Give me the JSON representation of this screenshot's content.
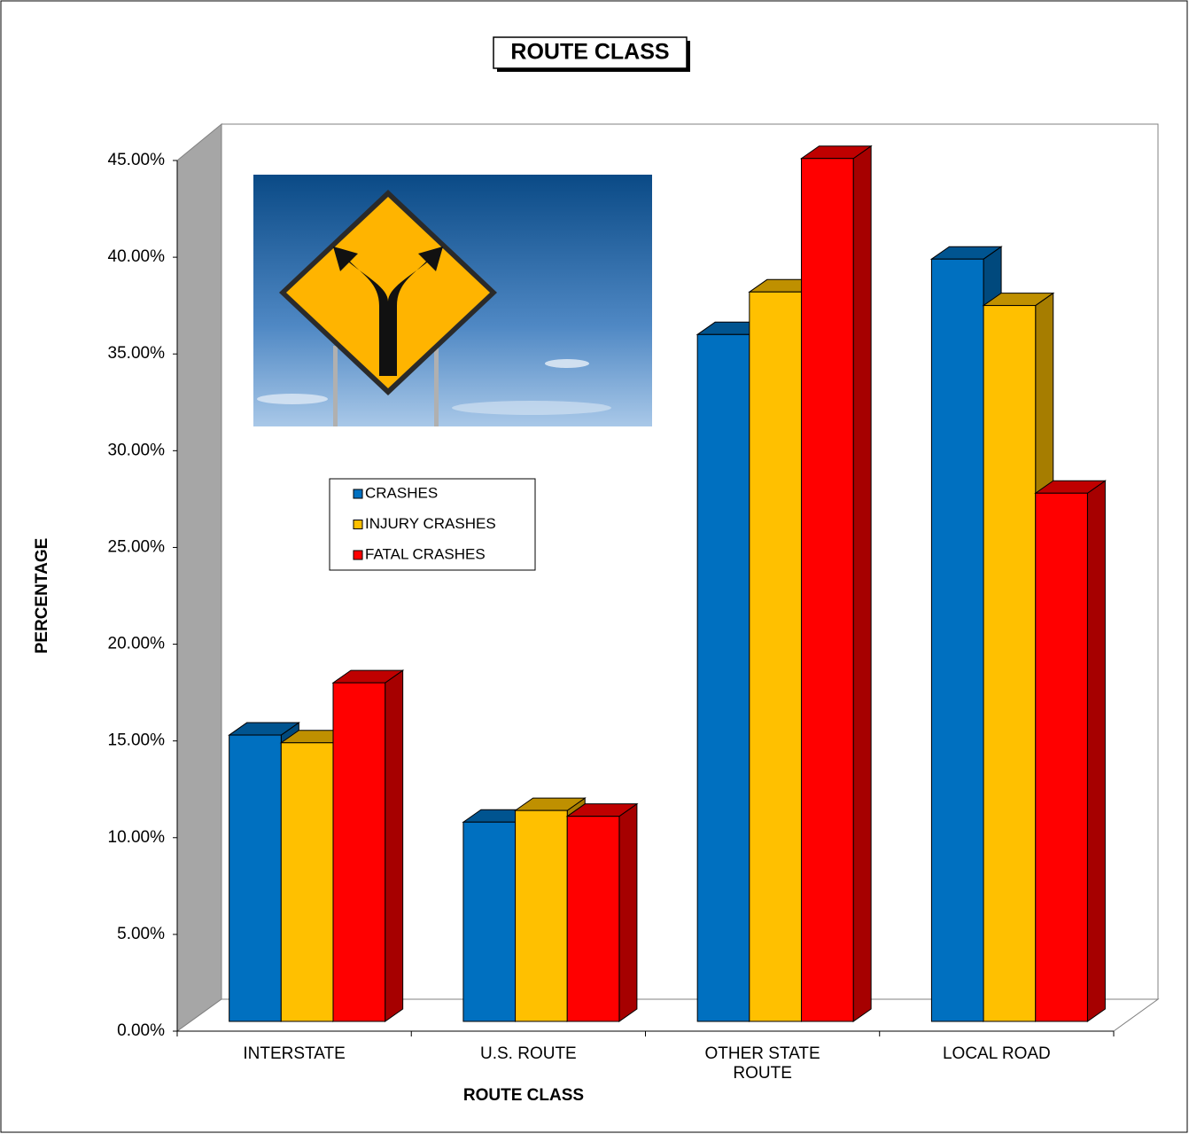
{
  "chart_data": {
    "type": "bar",
    "title": "ROUTE CLASS",
    "xlabel": "ROUTE CLASS",
    "ylabel": "PERCENTAGE",
    "categories": [
      "INTERSTATE",
      "U.S. ROUTE",
      "OTHER STATE ROUTE",
      "LOCAL ROAD"
    ],
    "series": [
      {
        "name": "CRASHES",
        "color": "#0070c0",
        "values": [
          14.8,
          10.3,
          35.5,
          39.4
        ]
      },
      {
        "name": "INJURY CRASHES",
        "color": "#ffc000",
        "values": [
          14.4,
          10.9,
          37.7,
          37.0
        ]
      },
      {
        "name": "FATAL CRASHES",
        "color": "#ff0000",
        "values": [
          17.5,
          10.6,
          44.6,
          27.3
        ]
      }
    ],
    "ylim": [
      0,
      45
    ],
    "yticks": [
      {
        "value": 0,
        "label": "0.00%"
      },
      {
        "value": 5,
        "label": "5.00%"
      },
      {
        "value": 10,
        "label": "10.00%"
      },
      {
        "value": 15,
        "label": "15.00%"
      },
      {
        "value": 20,
        "label": "20.00%"
      },
      {
        "value": 25,
        "label": "25.00%"
      },
      {
        "value": 30,
        "label": "30.00%"
      },
      {
        "value": 35,
        "label": "35.00%"
      },
      {
        "value": 40,
        "label": "40.00%"
      },
      {
        "value": 45,
        "label": "45.00%"
      }
    ],
    "grid": false
  }
}
